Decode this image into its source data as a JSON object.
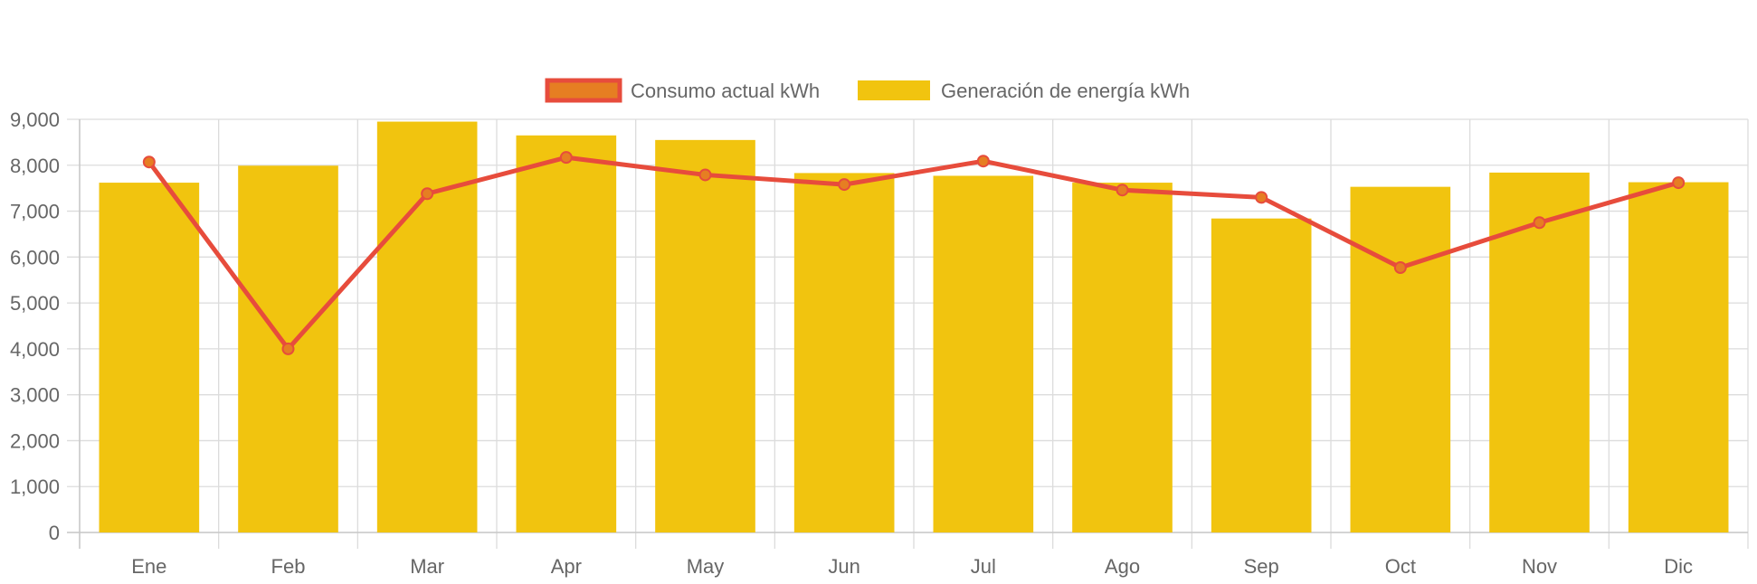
{
  "chart_data": {
    "type": "bar",
    "categories": [
      "Ene",
      "Feb",
      "Mar",
      "Apr",
      "May",
      "Jun",
      "Jul",
      "Ago",
      "Sep",
      "Oct",
      "Nov",
      "Dic"
    ],
    "series": [
      {
        "name": "Consumo actual kWh",
        "kind": "line",
        "values": [
          8070,
          4000,
          7380,
          8170,
          7790,
          7580,
          8090,
          7460,
          7300,
          5770,
          6750,
          7620
        ],
        "line_color": "#e74c3c",
        "point_color": "#e67e22"
      },
      {
        "name": "Generación de energía kWh",
        "kind": "bar",
        "values": [
          7620,
          7990,
          8950,
          8650,
          8550,
          7830,
          7770,
          7620,
          6840,
          7530,
          7840,
          7630
        ],
        "color": "#f1c40f"
      }
    ],
    "ylim": [
      0,
      9000
    ],
    "yticks": [
      "0",
      "1,000",
      "2,000",
      "3,000",
      "4,000",
      "5,000",
      "6,000",
      "7,000",
      "8,000",
      "9,000"
    ],
    "grid": true,
    "legend_position": "top-center",
    "title": "",
    "xlabel": "",
    "ylabel": ""
  }
}
